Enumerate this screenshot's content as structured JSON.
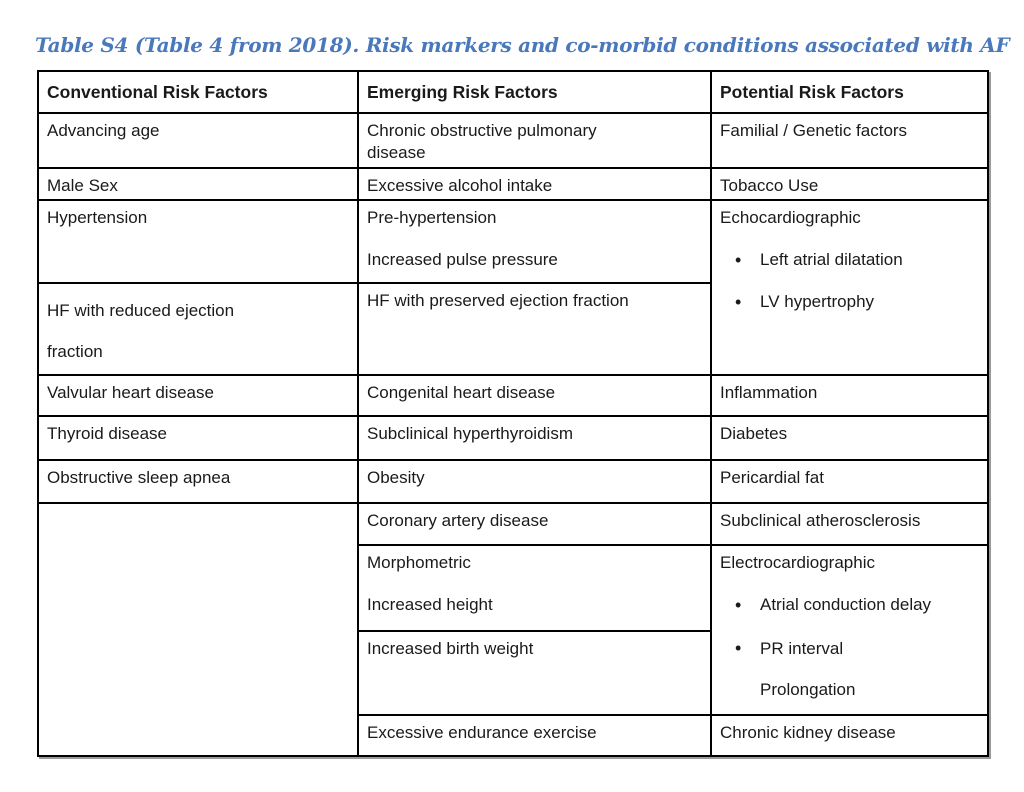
{
  "title": "Table S4 (Table 4 from 2018). Risk markers and co-morbid conditions associated with AF",
  "colors": {
    "title_text": "#4a79bb",
    "body_text": "#1a1a1a",
    "table_border": "#000000",
    "background": "#ffffff"
  },
  "table": {
    "headers": [
      "Conventional Risk Factors",
      "Emerging Risk Factors",
      "Potential Risk Factors"
    ],
    "cells": {
      "advancing_age": "Advancing age",
      "copd": "Chronic obstructive pulmonary disease",
      "familial_genetic": "Familial / Genetic factors",
      "male_sex": "Male Sex",
      "excessive_alcohol": "Excessive alcohol intake",
      "tobacco_use": "Tobacco Use",
      "hypertension": "Hypertension",
      "pre_hypertension": "Pre-hypertension",
      "increased_pulse_pressure": "Increased pulse pressure",
      "echocardiographic": {
        "heading": "Echocardiographic",
        "bullets": [
          "Left atrial dilatation",
          "LV hypertrophy"
        ]
      },
      "hf_reduced": "HF with reduced ejection fraction",
      "hf_preserved": "HF with preserved ejection fraction",
      "valvular": "Valvular heart disease",
      "congenital": "Congenital heart disease",
      "inflammation": "Inflammation",
      "thyroid": "Thyroid disease",
      "subclinical_hyperthyroidism": "Subclinical hyperthyroidism",
      "diabetes": "Diabetes",
      "obstructive_sleep_apnea": "Obstructive sleep apnea",
      "obesity": "Obesity",
      "pericardial_fat": "Pericardial fat",
      "coronary_artery_disease": "Coronary artery disease",
      "subclinical_atherosclerosis": "Subclinical atherosclerosis",
      "morphometric": "Morphometric",
      "increased_height": "Increased height",
      "electrocardiographic": {
        "heading": "Electrocardiographic",
        "bullets": [
          "Atrial conduction delay",
          "PR interval Prolongation"
        ]
      },
      "increased_birth_weight": "Increased birth weight",
      "endurance_exercise": "Excessive endurance exercise",
      "chronic_kidney_disease": "Chronic kidney disease"
    }
  }
}
